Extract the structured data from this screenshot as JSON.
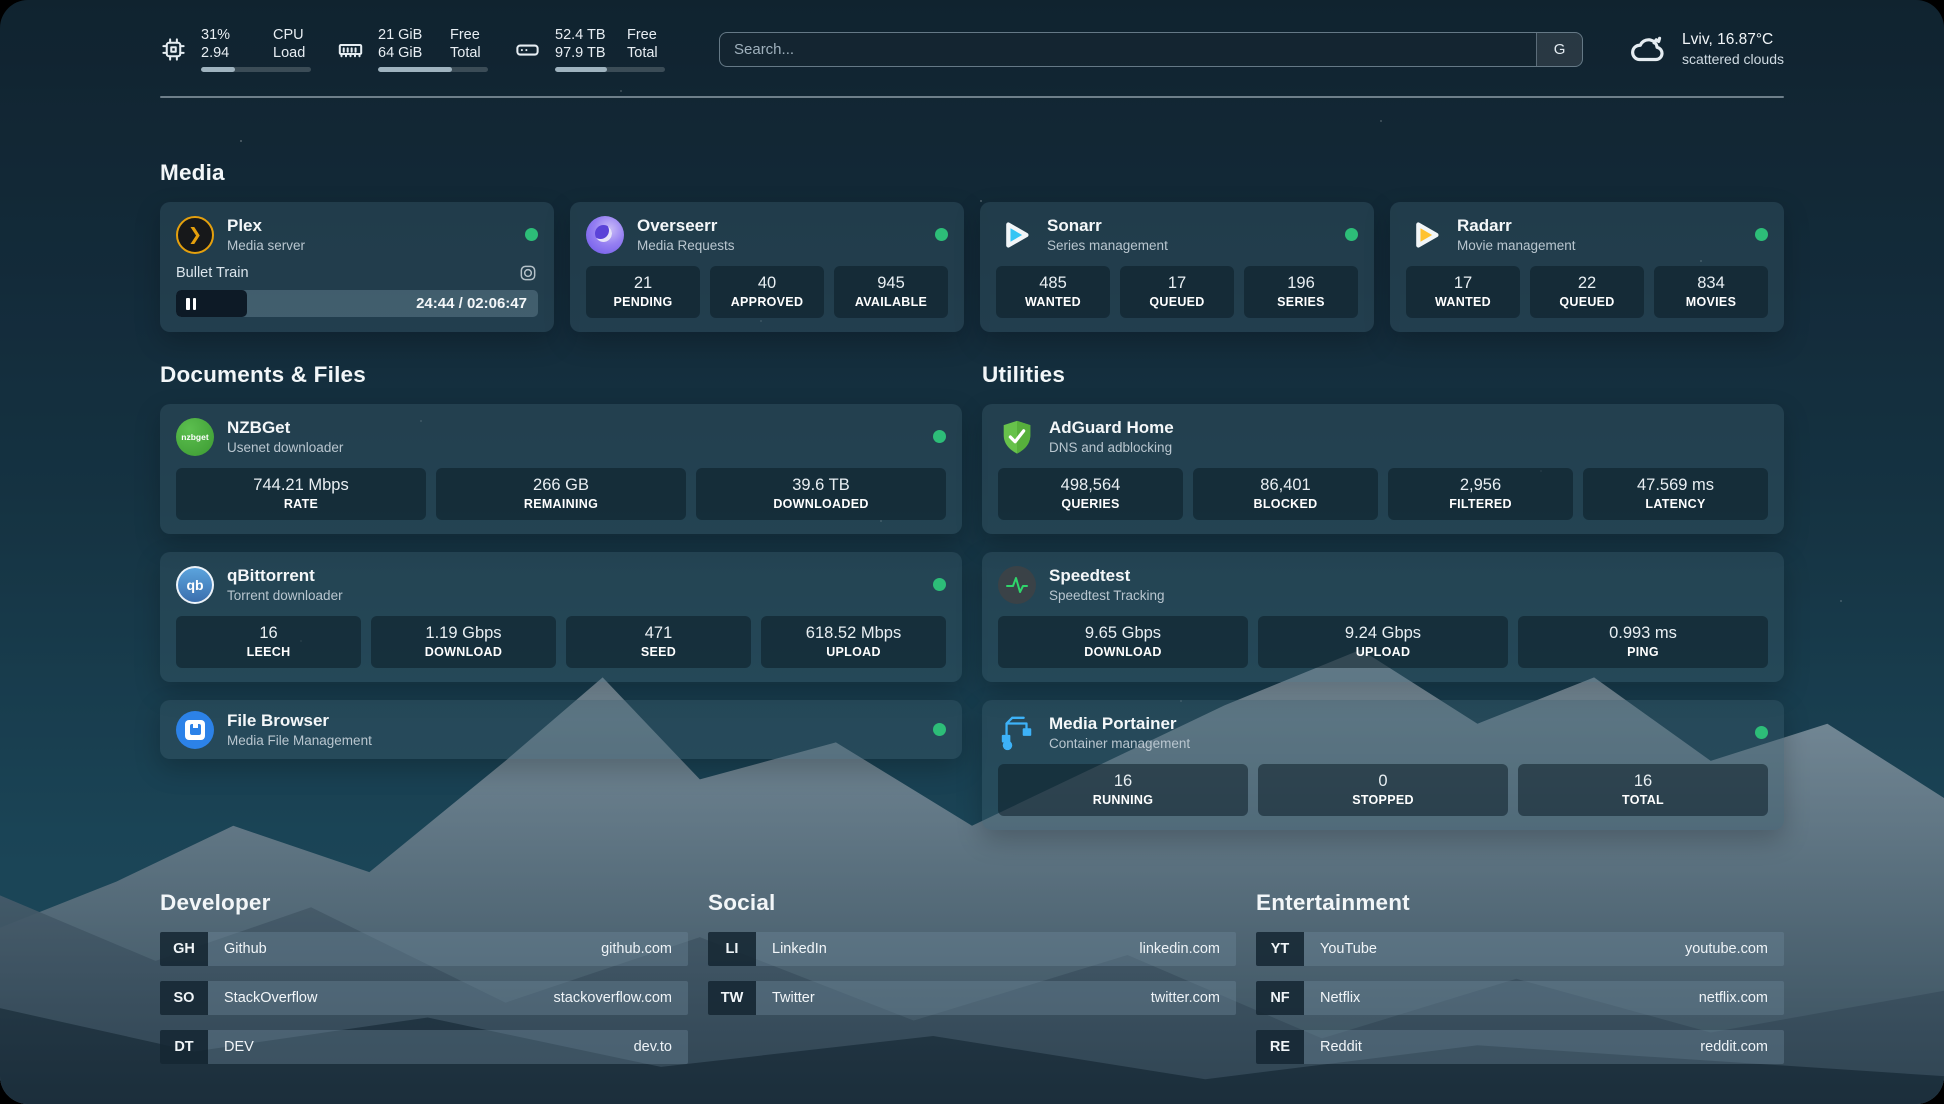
{
  "header": {
    "cpu": {
      "line1": "31%",
      "line2": "2.94",
      "label1": "CPU",
      "label2": "Load",
      "progress": "31%"
    },
    "ram": {
      "line1": "21 GiB",
      "line2": "64 GiB",
      "label1": "Free",
      "label2": "Total",
      "progress": "67%"
    },
    "disk": {
      "line1": "52.4 TB",
      "line2": "97.9 TB",
      "label1": "Free",
      "label2": "Total",
      "progress": "47%"
    },
    "search": {
      "placeholder": "Search...",
      "button": "G"
    },
    "weather": {
      "line1": "Lviv, 16.87°C",
      "line2": "scattered clouds"
    }
  },
  "sections": {
    "media": "Media",
    "documents": "Documents & Files",
    "utilities": "Utilities",
    "developer": "Developer",
    "social": "Social",
    "entertainment": "Entertainment"
  },
  "apps": {
    "plex": {
      "name": "Plex",
      "desc": "Media server",
      "now_playing": "Bullet Train",
      "time": "24:44 / 02:06:47",
      "progress": "19.5%"
    },
    "overseerr": {
      "name": "Overseerr",
      "desc": "Media Requests",
      "stats": [
        {
          "value": "21",
          "label": "PENDING"
        },
        {
          "value": "40",
          "label": "APPROVED"
        },
        {
          "value": "945",
          "label": "AVAILABLE"
        }
      ]
    },
    "sonarr": {
      "name": "Sonarr",
      "desc": "Series management",
      "stats": [
        {
          "value": "485",
          "label": "WANTED"
        },
        {
          "value": "17",
          "label": "QUEUED"
        },
        {
          "value": "196",
          "label": "SERIES"
        }
      ]
    },
    "radarr": {
      "name": "Radarr",
      "desc": "Movie management",
      "stats": [
        {
          "value": "17",
          "label": "WANTED"
        },
        {
          "value": "22",
          "label": "QUEUED"
        },
        {
          "value": "834",
          "label": "MOVIES"
        }
      ]
    },
    "nzbget": {
      "name": "NZBGet",
      "desc": "Usenet downloader",
      "stats": [
        {
          "value": "744.21 Mbps",
          "label": "RATE"
        },
        {
          "value": "266 GB",
          "label": "REMAINING"
        },
        {
          "value": "39.6 TB",
          "label": "DOWNLOADED"
        }
      ]
    },
    "qbittorrent": {
      "name": "qBittorrent",
      "desc": "Torrent downloader",
      "stats": [
        {
          "value": "16",
          "label": "LEECH"
        },
        {
          "value": "1.19 Gbps",
          "label": "DOWNLOAD"
        },
        {
          "value": "471",
          "label": "SEED"
        },
        {
          "value": "618.52 Mbps",
          "label": "UPLOAD"
        }
      ]
    },
    "filebrowser": {
      "name": "File Browser",
      "desc": "Media File Management"
    },
    "adguard": {
      "name": "AdGuard Home",
      "desc": "DNS and adblocking",
      "stats": [
        {
          "value": "498,564",
          "label": "QUERIES"
        },
        {
          "value": "86,401",
          "label": "BLOCKED"
        },
        {
          "value": "2,956",
          "label": "FILTERED"
        },
        {
          "value": "47.569 ms",
          "label": "LATENCY"
        }
      ]
    },
    "speedtest": {
      "name": "Speedtest",
      "desc": "Speedtest Tracking",
      "stats": [
        {
          "value": "9.65 Gbps",
          "label": "DOWNLOAD"
        },
        {
          "value": "9.24 Gbps",
          "label": "UPLOAD"
        },
        {
          "value": "0.993 ms",
          "label": "PING"
        }
      ]
    },
    "portainer": {
      "name": "Media Portainer",
      "desc": "Container management",
      "stats": [
        {
          "value": "16",
          "label": "RUNNING"
        },
        {
          "value": "0",
          "label": "STOPPED"
        },
        {
          "value": "16",
          "label": "TOTAL"
        }
      ]
    }
  },
  "links": {
    "developer": [
      {
        "abbr": "GH",
        "name": "Github",
        "url": "github.com"
      },
      {
        "abbr": "SO",
        "name": "StackOverflow",
        "url": "stackoverflow.com"
      },
      {
        "abbr": "DT",
        "name": "DEV",
        "url": "dev.to"
      }
    ],
    "social": [
      {
        "abbr": "LI",
        "name": "LinkedIn",
        "url": "linkedin.com"
      },
      {
        "abbr": "TW",
        "name": "Twitter",
        "url": "twitter.com"
      }
    ],
    "entertainment": [
      {
        "abbr": "YT",
        "name": "YouTube",
        "url": "youtube.com"
      },
      {
        "abbr": "NF",
        "name": "Netflix",
        "url": "netflix.com"
      },
      {
        "abbr": "RE",
        "name": "Reddit",
        "url": "reddit.com"
      }
    ]
  },
  "icons": {
    "plex_glyph": "❯",
    "nzbget_text": "nzbget",
    "qb_text": "qb",
    "pause": "pause-icon",
    "settings": "settings-icon"
  },
  "colors": {
    "status_online": "#2dbd78",
    "plex_gold": "#e5a00d",
    "sonarr_cyan": "#35c5f4",
    "radarr_gold": "#ffc230",
    "adguard_green": "#67c24b",
    "portainer_blue": "#3db2f8"
  }
}
